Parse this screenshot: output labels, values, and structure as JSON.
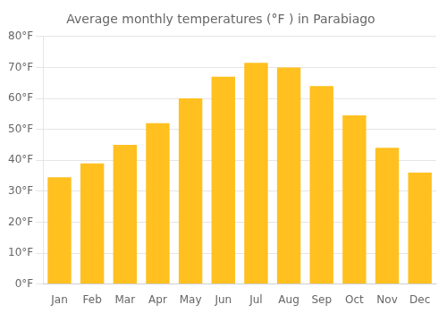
{
  "chart_data": {
    "type": "bar",
    "title": "Average monthly temperatures (°F ) in Parabiago",
    "categories": [
      "Jan",
      "Feb",
      "Mar",
      "Apr",
      "May",
      "Jun",
      "Jul",
      "Aug",
      "Sep",
      "Oct",
      "Nov",
      "Dec"
    ],
    "values": [
      34.5,
      39.0,
      45.0,
      52.0,
      60.0,
      67.0,
      71.5,
      70.0,
      64.0,
      54.5,
      44.0,
      36.0
    ],
    "color": "#FFC020",
    "ylim": [
      0,
      80
    ],
    "yticks": [
      {
        "value": 0,
        "label": "0°F"
      },
      {
        "value": 10,
        "label": "10°F"
      },
      {
        "value": 20,
        "label": "20°F"
      },
      {
        "value": 30,
        "label": "30°F"
      },
      {
        "value": 40,
        "label": "40°F"
      },
      {
        "value": 50,
        "label": "50°F"
      },
      {
        "value": 60,
        "label": "60°F"
      },
      {
        "value": 70,
        "label": "70°F"
      },
      {
        "value": 80,
        "label": "80°F"
      }
    ],
    "grid": true
  }
}
